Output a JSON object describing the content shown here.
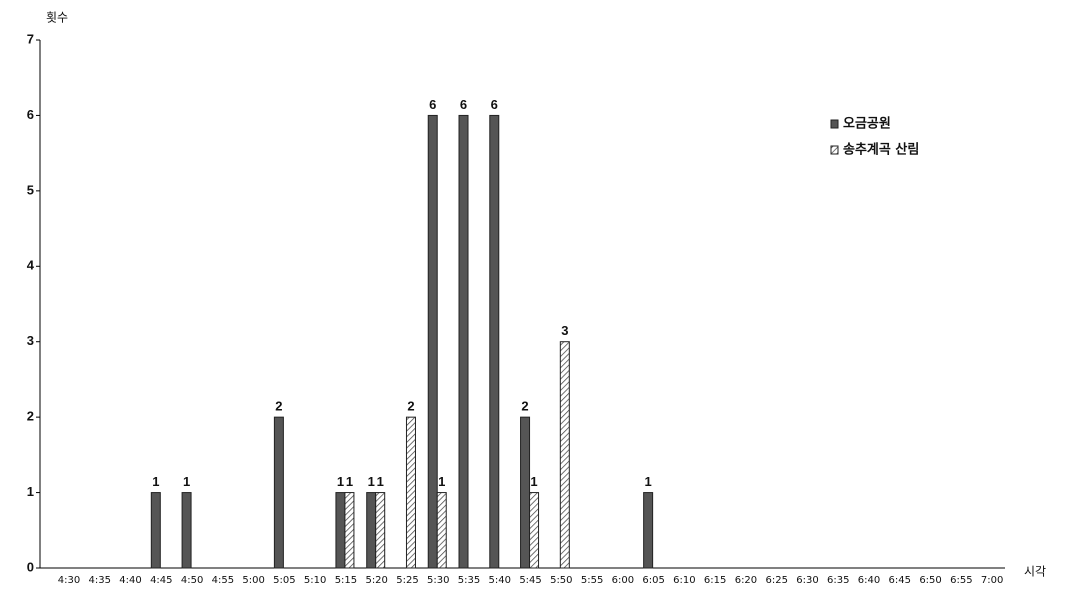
{
  "chart_data": {
    "type": "bar",
    "y_label": "횟수",
    "x_label": "시각",
    "categories": [
      "4:30",
      "4:35",
      "4:40",
      "4:45",
      "4:50",
      "4:55",
      "5:00",
      "5:05",
      "5:10",
      "5:15",
      "5:20",
      "5:25",
      "5:30",
      "5:35",
      "5:40",
      "5:45",
      "5:50",
      "5:55",
      "6:00",
      "6:05",
      "6:10",
      "6:15",
      "6:20",
      "6:25",
      "6:30",
      "6:35",
      "6:40",
      "6:45",
      "6:50",
      "6:55",
      "7:00"
    ],
    "series": [
      {
        "name": "오금공원",
        "color": "#555555",
        "pattern": "solid",
        "values": [
          null,
          null,
          null,
          1,
          1,
          null,
          null,
          2,
          null,
          1,
          1,
          null,
          6,
          6,
          6,
          2,
          null,
          null,
          null,
          1,
          null,
          null,
          null,
          null,
          null,
          null,
          null,
          null,
          null,
          null,
          null
        ]
      },
      {
        "name": "송추계곡 산림",
        "color": "#555555",
        "pattern": "hatch",
        "values": [
          null,
          null,
          null,
          null,
          null,
          null,
          null,
          null,
          null,
          1,
          1,
          2,
          1,
          null,
          null,
          1,
          3,
          null,
          null,
          null,
          null,
          null,
          null,
          null,
          null,
          null,
          null,
          null,
          null,
          null,
          null
        ]
      }
    ],
    "ylim": [
      0,
      7
    ],
    "yticks": [
      0,
      1,
      2,
      3,
      4,
      5,
      6,
      7
    ],
    "legend": "upper right"
  }
}
